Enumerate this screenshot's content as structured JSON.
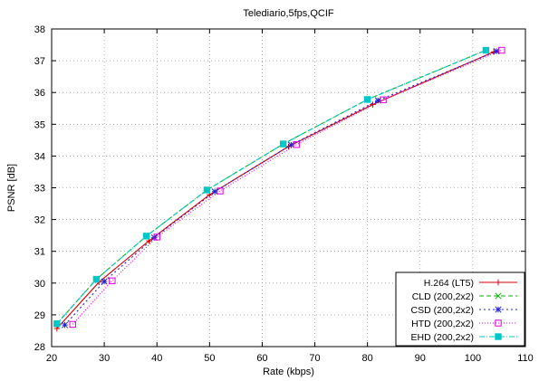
{
  "chart_data": {
    "type": "line",
    "title": "Telediario,5fps,QCIF",
    "xlabel": "Rate (kbps)",
    "ylabel": "PSNR [dB]",
    "xlim": [
      20,
      110
    ],
    "ylim": [
      28,
      38
    ],
    "xticks": [
      20,
      30,
      40,
      50,
      60,
      70,
      80,
      90,
      100,
      110
    ],
    "yticks": [
      28,
      29,
      30,
      31,
      32,
      33,
      34,
      35,
      36,
      37,
      38
    ],
    "grid": true,
    "legend_position": "bottom-right",
    "series": [
      {
        "name": "H.264 (LT5)",
        "color": "#d40000",
        "dash": "",
        "marker": "plus",
        "x": [
          21.0,
          29.0,
          38.5,
          50.0,
          65.0,
          81.0,
          104.0
        ],
        "y": [
          28.57,
          30.03,
          31.33,
          32.78,
          34.3,
          35.62,
          37.28
        ]
      },
      {
        "name": "CLD (200,2x2)",
        "color": "#00b000",
        "dash": "5,3",
        "marker": "cross",
        "x": [
          21.0,
          28.5,
          38.0,
          49.5,
          64.0,
          80.0,
          102.5
        ],
        "y": [
          28.72,
          30.12,
          31.48,
          32.93,
          34.38,
          35.78,
          37.33
        ]
      },
      {
        "name": "CSD (200,2x2)",
        "color": "#2020d0",
        "dash": "2,3",
        "marker": "star",
        "x": [
          22.5,
          30.0,
          39.5,
          51.0,
          65.5,
          82.0,
          104.5
        ],
        "y": [
          28.68,
          30.05,
          31.43,
          32.88,
          34.35,
          35.75,
          37.3
        ]
      },
      {
        "name": "HTD (200,2x2)",
        "color": "#e000e0",
        "dash": "1,2",
        "marker": "square",
        "x": [
          24.0,
          31.5,
          40.0,
          52.0,
          66.5,
          83.0,
          105.5
        ],
        "y": [
          28.7,
          30.07,
          31.45,
          32.9,
          34.36,
          35.77,
          37.33
        ]
      },
      {
        "name": "EHD (200,2x2)",
        "color": "#00c8c8",
        "dash": "6,2,1,2",
        "marker": "filled-square",
        "x": [
          21.0,
          28.5,
          38.0,
          49.5,
          64.0,
          80.0,
          102.5
        ],
        "y": [
          28.72,
          30.12,
          31.48,
          32.93,
          34.38,
          35.78,
          37.33
        ]
      }
    ]
  }
}
